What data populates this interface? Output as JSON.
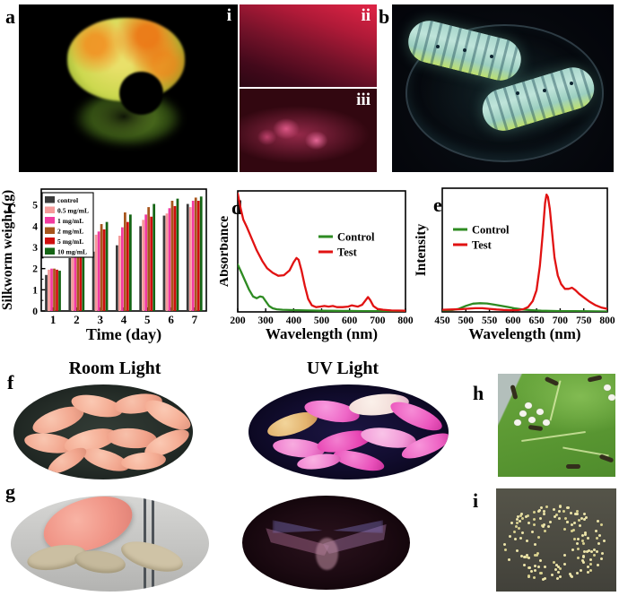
{
  "figure": {
    "labels": {
      "a": "a",
      "sub_i": "i",
      "sub_ii": "ii",
      "sub_iii": "iii",
      "b": "b",
      "c": "c",
      "d": "d",
      "e": "e",
      "f": "f",
      "g": "g",
      "h": "h",
      "panel_i": "i"
    },
    "headers": {
      "room_light": "Room Light",
      "uv_light": "UV Light"
    }
  },
  "chart_data": [
    {
      "type": "bar",
      "panel": "c",
      "title": "",
      "xlabel": "Time (day)",
      "ylabel": "Silkworm weight (g)",
      "categories": [
        "1",
        "2",
        "3",
        "4",
        "5",
        "6",
        "7"
      ],
      "ylim": [
        0,
        5.75
      ],
      "yticks": [
        0,
        1,
        2,
        3,
        4,
        5
      ],
      "grid": false,
      "legend_position": "top-left-inside",
      "series": [
        {
          "name": "control",
          "color": "#3a3a3a",
          "values": [
            1.7,
            2.5,
            2.8,
            3.1,
            4.0,
            4.5,
            5.05
          ]
        },
        {
          "name": "0.5 mg/mL",
          "color": "#f59a9a",
          "values": [
            1.95,
            3.2,
            3.6,
            3.55,
            4.3,
            4.6,
            4.9
          ]
        },
        {
          "name": "1 mg/mL",
          "color": "#f23ba0",
          "values": [
            2.0,
            3.35,
            3.75,
            3.95,
            4.55,
            4.85,
            5.2
          ]
        },
        {
          "name": "2 mg/mL",
          "color": "#a7551c",
          "values": [
            2.0,
            3.9,
            4.1,
            4.65,
            4.9,
            5.2,
            5.35
          ]
        },
        {
          "name": "5 mg/mL",
          "color": "#cf0e0e",
          "values": [
            1.95,
            3.4,
            3.85,
            4.2,
            4.45,
            4.95,
            5.2
          ]
        },
        {
          "name": "10 mg/mL",
          "color": "#156515",
          "values": [
            1.9,
            3.6,
            4.2,
            4.55,
            5.05,
            5.3,
            5.4
          ]
        }
      ]
    },
    {
      "type": "line",
      "panel": "d",
      "title": "",
      "xlabel": "Wavelength (nm)",
      "ylabel": "Absorbance",
      "xlim": [
        200,
        800
      ],
      "xticks": [
        200,
        300,
        400,
        500,
        600,
        700,
        800
      ],
      "ylim": [
        0,
        1
      ],
      "grid": false,
      "legend_position": "center-upper",
      "series": [
        {
          "name": "Control",
          "color": "#2e8b22",
          "x": [
            200,
            212,
            225,
            240,
            255,
            268,
            280,
            290,
            300,
            312,
            325,
            340,
            360,
            400,
            450,
            500,
            550,
            600,
            650,
            700,
            750,
            800
          ],
          "y": [
            0.4,
            0.34,
            0.27,
            0.19,
            0.13,
            0.115,
            0.13,
            0.125,
            0.09,
            0.05,
            0.03,
            0.022,
            0.018,
            0.015,
            0.012,
            0.01,
            0.009,
            0.008,
            0.007,
            0.006,
            0.005,
            0.005
          ]
        },
        {
          "name": "Test",
          "color": "#e11212",
          "x": [
            200,
            210,
            220,
            232,
            248,
            268,
            288,
            305,
            325,
            345,
            365,
            385,
            400,
            410,
            418,
            428,
            440,
            452,
            465,
            480,
            495,
            510,
            525,
            540,
            555,
            575,
            595,
            608,
            618,
            630,
            645,
            658,
            666,
            674,
            685,
            700,
            720,
            750,
            800
          ],
          "y": [
            1.0,
            0.88,
            0.78,
            0.72,
            0.63,
            0.52,
            0.43,
            0.37,
            0.33,
            0.305,
            0.31,
            0.35,
            0.42,
            0.455,
            0.44,
            0.35,
            0.22,
            0.11,
            0.055,
            0.04,
            0.045,
            0.05,
            0.045,
            0.05,
            0.04,
            0.04,
            0.045,
            0.055,
            0.05,
            0.045,
            0.06,
            0.1,
            0.125,
            0.1,
            0.05,
            0.025,
            0.018,
            0.012,
            0.01
          ]
        }
      ]
    },
    {
      "type": "line",
      "panel": "e",
      "title": "",
      "xlabel": "Wavelength (nm)",
      "ylabel": "Intensity",
      "xlim": [
        450,
        800
      ],
      "xticks": [
        450,
        500,
        550,
        600,
        650,
        700,
        750,
        800
      ],
      "ylim": [
        0,
        1
      ],
      "grid": false,
      "legend_position": "top-left-inside",
      "series": [
        {
          "name": "Control",
          "color": "#2e8b22",
          "x": [
            450,
            470,
            485,
            500,
            515,
            530,
            545,
            560,
            575,
            590,
            605,
            620,
            640,
            660,
            680,
            700,
            730,
            760,
            800
          ],
          "y": [
            0.012,
            0.015,
            0.025,
            0.05,
            0.068,
            0.072,
            0.07,
            0.06,
            0.05,
            0.04,
            0.028,
            0.02,
            0.014,
            0.01,
            0.008,
            0.007,
            0.006,
            0.005,
            0.004
          ]
        },
        {
          "name": "Test",
          "color": "#e11212",
          "x": [
            450,
            470,
            490,
            505,
            520,
            535,
            550,
            565,
            580,
            595,
            610,
            622,
            632,
            642,
            650,
            657,
            663,
            668,
            671,
            674,
            678,
            683,
            688,
            695,
            702,
            710,
            718,
            725,
            732,
            740,
            750,
            762,
            775,
            788,
            800
          ],
          "y": [
            0.018,
            0.02,
            0.022,
            0.027,
            0.03,
            0.03,
            0.025,
            0.02,
            0.016,
            0.014,
            0.015,
            0.022,
            0.04,
            0.09,
            0.18,
            0.38,
            0.65,
            0.9,
            0.97,
            0.95,
            0.85,
            0.65,
            0.45,
            0.3,
            0.23,
            0.19,
            0.19,
            0.2,
            0.18,
            0.15,
            0.12,
            0.085,
            0.055,
            0.035,
            0.025
          ]
        }
      ]
    }
  ]
}
